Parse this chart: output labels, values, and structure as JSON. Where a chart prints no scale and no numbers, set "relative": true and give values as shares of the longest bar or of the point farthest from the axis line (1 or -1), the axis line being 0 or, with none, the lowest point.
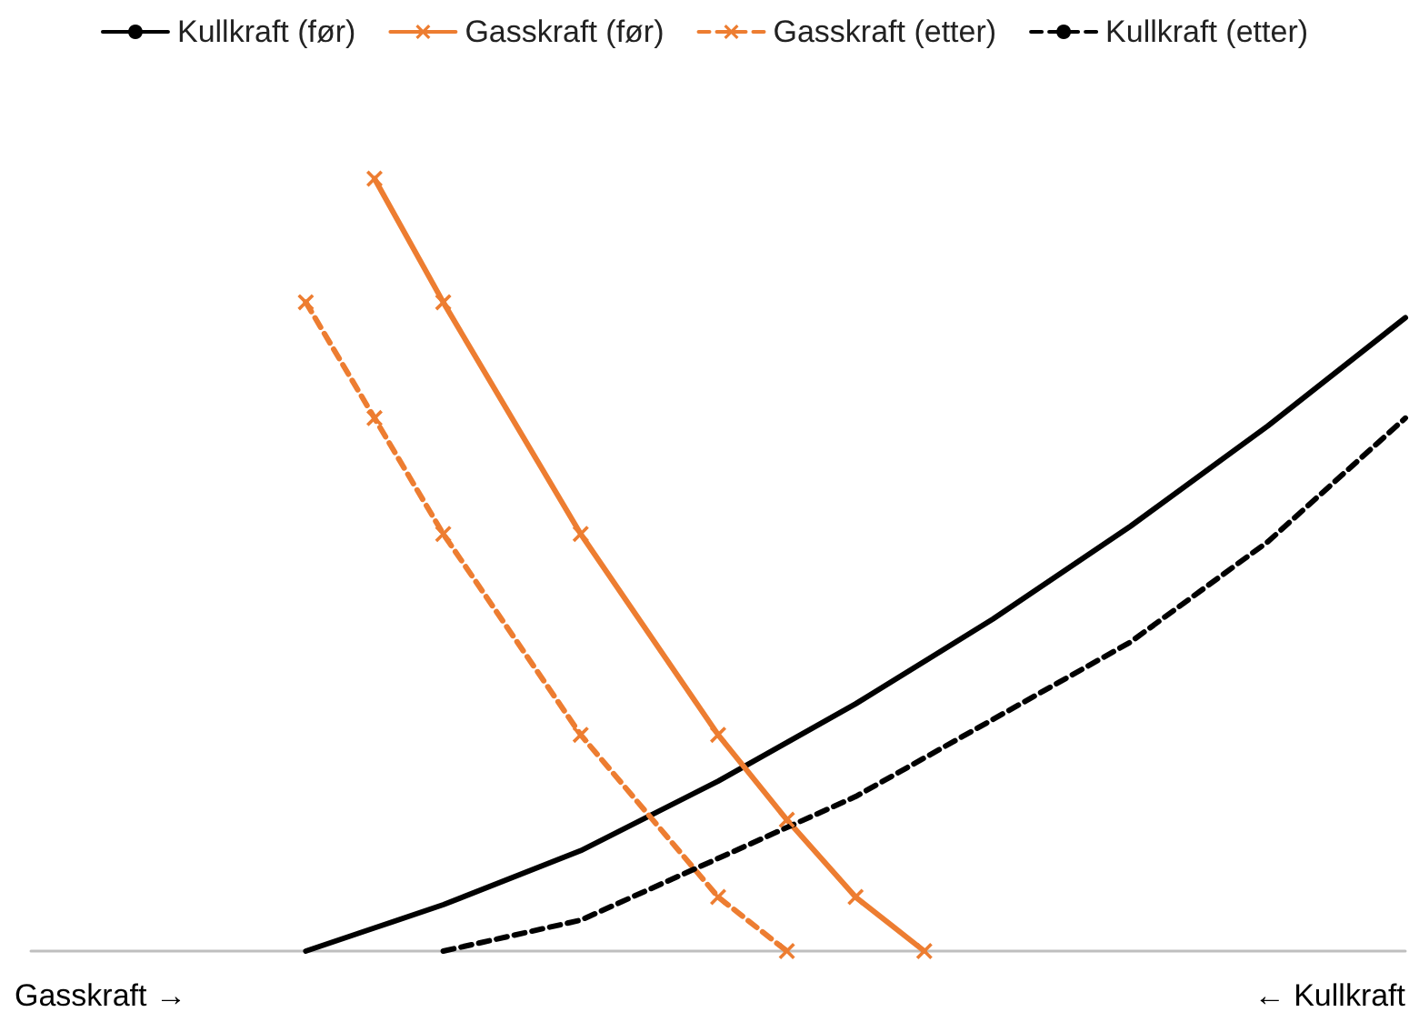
{
  "chart_data": {
    "type": "line",
    "relative": true,
    "legend": "top",
    "grid": false,
    "categories": [
      null,
      null,
      null,
      null,
      null,
      null,
      null,
      null,
      null,
      null,
      null,
      null,
      null,
      null,
      null,
      null,
      null,
      null,
      null,
      null,
      null
    ],
    "annotations": [
      "Gasskraft →",
      "← Kullkraft"
    ],
    "series": [
      {
        "name": "Kullkraft (før)",
        "color": "#000000",
        "marker": "none",
        "line_style": "solid",
        "values": [
          null,
          null,
          null,
          null,
          0,
          0.03,
          0.06,
          null,
          0.13,
          null,
          0.22,
          null,
          0.32,
          null,
          0.43,
          null,
          0.55,
          null,
          0.68,
          null,
          0.82
        ]
      },
      {
        "name": "Gasskraft (før)",
        "color": "#ed7d31",
        "marker": "cross",
        "line_style": "solid",
        "values": [
          null,
          null,
          null,
          null,
          null,
          1,
          0.84,
          null,
          0.54,
          null,
          0.28,
          0.17,
          0.07,
          0,
          null,
          null,
          null,
          null,
          null,
          null,
          null
        ]
      },
      {
        "name": "Gasskraft (etter)",
        "color": "#ed7d31",
        "marker": "cross",
        "line_style": "dashed",
        "values": [
          null,
          null,
          null,
          null,
          0.84,
          0.69,
          0.54,
          null,
          0.28,
          null,
          0.07,
          0,
          null,
          null,
          null,
          null,
          null,
          null,
          null,
          null,
          null
        ]
      },
      {
        "name": "Kullkraft (etter)",
        "color": "#000000",
        "marker": "none",
        "line_style": "dashed",
        "values": [
          null,
          null,
          null,
          null,
          null,
          null,
          0,
          null,
          0.04,
          null,
          0.12,
          null,
          0.2,
          null,
          0.3,
          null,
          0.4,
          null,
          0.53,
          null,
          0.69
        ]
      }
    ]
  }
}
